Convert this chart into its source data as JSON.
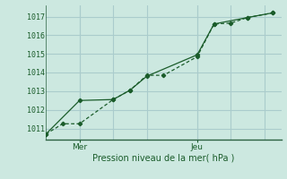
{
  "bg_color": "#cce8e0",
  "grid_color": "#aacccc",
  "line_color": "#1a5c2a",
  "axis_color": "#2a6040",
  "xlabel": "Pression niveau de la mer( hPa )",
  "ylim": [
    1010.4,
    1017.6
  ],
  "yticks": [
    1011,
    1012,
    1013,
    1014,
    1015,
    1016,
    1017
  ],
  "xlim": [
    0,
    14
  ],
  "x_mer": 2.0,
  "x_jeu": 9.0,
  "x_gridlines": [
    2.0,
    4.0,
    6.0,
    9.0,
    11.0,
    13.0
  ],
  "series1_x": [
    0.0,
    1.0,
    2.0,
    4.0,
    5.0,
    6.0,
    7.0,
    9.0,
    10.0,
    11.0,
    12.0,
    13.5
  ],
  "series1_y": [
    1010.7,
    1011.25,
    1011.25,
    1012.55,
    1013.05,
    1013.85,
    1013.85,
    1014.85,
    1016.6,
    1016.65,
    1016.95,
    1017.2
  ],
  "series2_x": [
    0.0,
    2.0,
    4.0,
    5.0,
    6.0,
    9.0,
    10.0,
    12.0,
    13.5
  ],
  "series2_y": [
    1010.7,
    1012.5,
    1012.55,
    1013.05,
    1013.8,
    1014.95,
    1016.6,
    1016.95,
    1017.2
  ]
}
